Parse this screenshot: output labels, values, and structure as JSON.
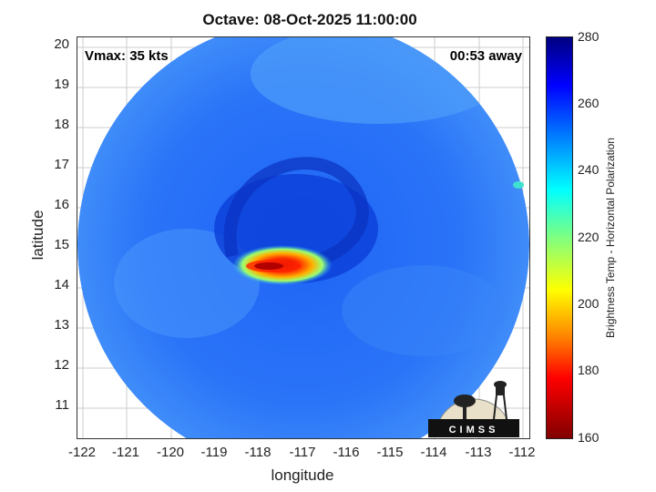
{
  "title": "Octave: 08-Oct-2025 11:00:00",
  "vmax_label": "Vmax: 35 kts",
  "time_label": "00:53 away",
  "xlabel": "longitude",
  "ylabel": "latitude",
  "colorbar_label": "Brightness Temp - Horizontal Polarization",
  "logo_text": "CIMSS",
  "x_ticks": [
    "-122",
    "-121",
    "-120",
    "-119",
    "-118",
    "-117",
    "-116",
    "-115",
    "-114",
    "-113",
    "-112"
  ],
  "y_ticks": [
    "20",
    "19",
    "18",
    "17",
    "16",
    "15",
    "14",
    "13",
    "12",
    "11"
  ],
  "colorbar_ticks": [
    "280",
    "260",
    "240",
    "220",
    "200",
    "180",
    "160"
  ],
  "colorbar_range": [
    160,
    280
  ],
  "x_range": [
    -122.2,
    -111.9
  ],
  "y_range": [
    10.25,
    20.25
  ],
  "colors": {
    "cold": "#800000",
    "warm": "#000080",
    "field": "#1a5cf0"
  }
}
